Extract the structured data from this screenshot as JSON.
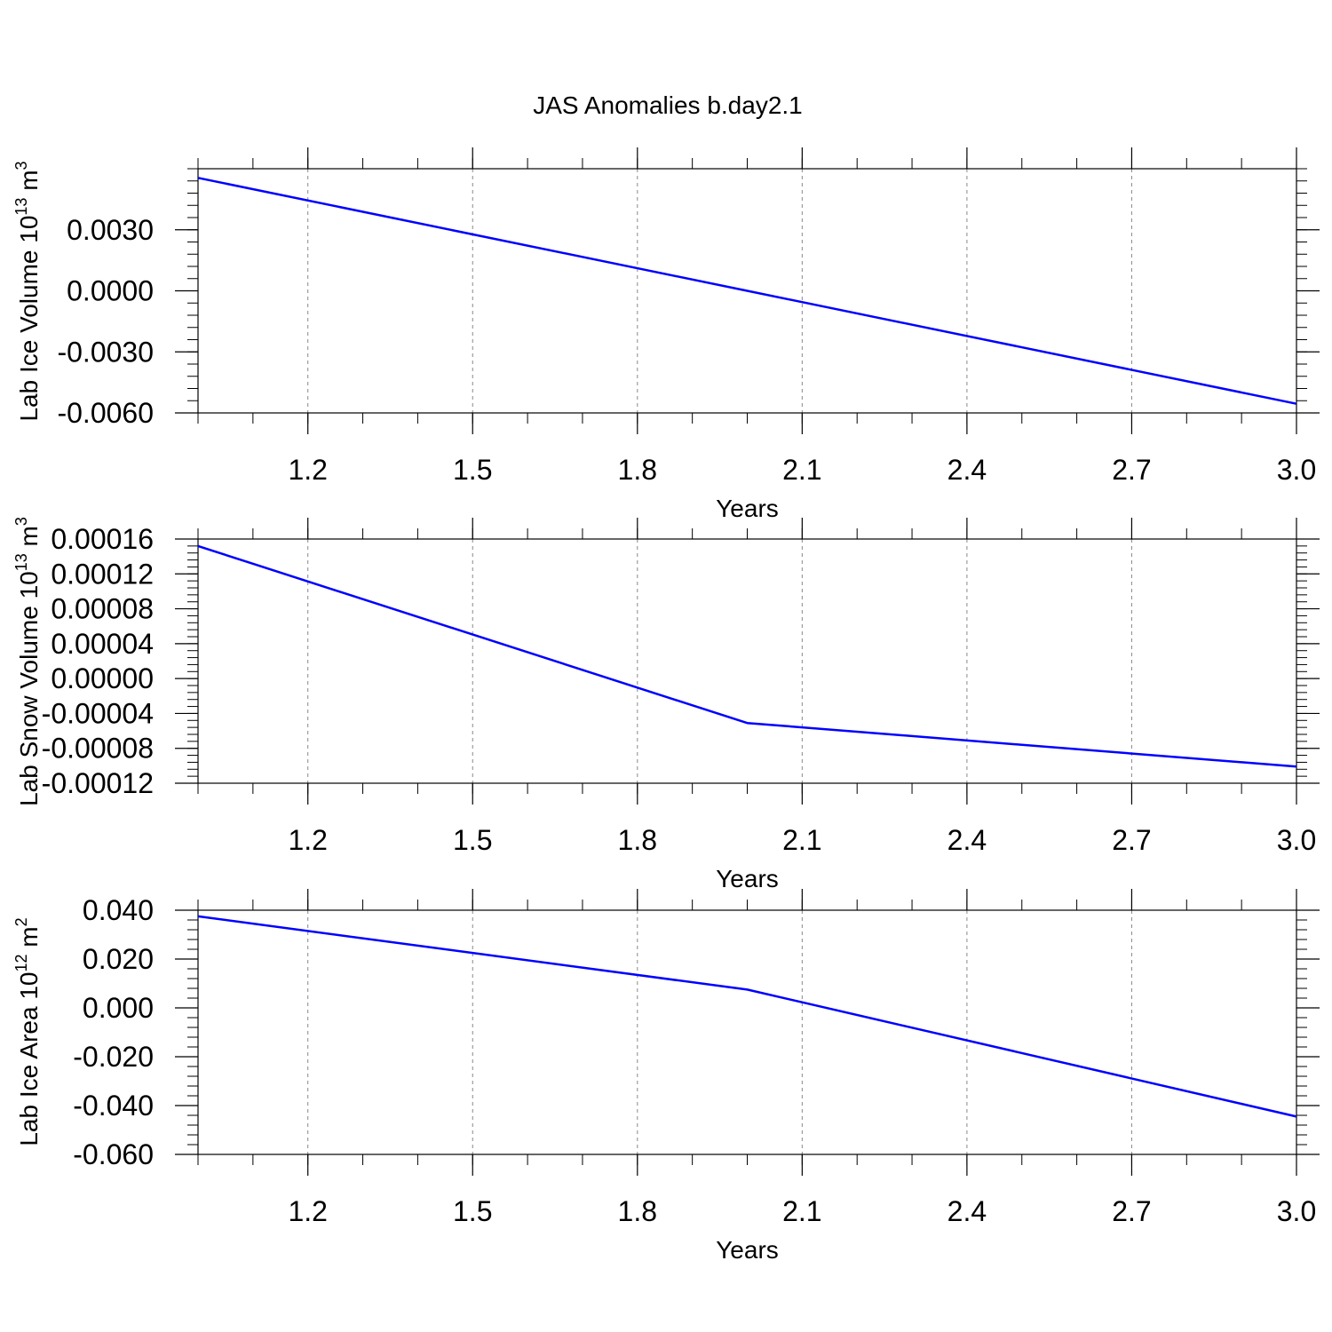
{
  "title": "JAS Anomalies b.day2.1",
  "chart_data": [
    {
      "type": "line",
      "ylabel": "Lab Ice Volume",
      "ylabel_unit": {
        "base": "10",
        "exp": "13",
        "unit": "m",
        "unit_exp": "3"
      },
      "xlabel": "Years",
      "xlim": [
        1.0,
        3.0
      ],
      "ylim": [
        -0.006,
        0.006
      ],
      "x_ticks": [
        1.2,
        1.5,
        1.8,
        2.1,
        2.4,
        2.7,
        3.0
      ],
      "x_tick_labels": [
        "1.2",
        "1.5",
        "1.8",
        "2.1",
        "2.4",
        "2.7",
        "3.0"
      ],
      "y_ticks": [
        -0.006,
        -0.003,
        0.0,
        0.003
      ],
      "y_tick_labels": [
        "-0.0060",
        "-0.0030",
        "0.0000",
        "0.0030"
      ],
      "grid": "vertical-dashed",
      "line_color": "#0000ff",
      "x": [
        1.0,
        2.0,
        3.0
      ],
      "y": [
        0.00555,
        0.0,
        -0.00555
      ]
    },
    {
      "type": "line",
      "ylabel": "Lab Snow Volume",
      "ylabel_unit": {
        "base": "10",
        "exp": "13",
        "unit": "m",
        "unit_exp": "3"
      },
      "xlabel": "Years",
      "xlim": [
        1.0,
        3.0
      ],
      "ylim": [
        -0.00012,
        0.00016
      ],
      "x_ticks": [
        1.2,
        1.5,
        1.8,
        2.1,
        2.4,
        2.7,
        3.0
      ],
      "x_tick_labels": [
        "1.2",
        "1.5",
        "1.8",
        "2.1",
        "2.4",
        "2.7",
        "3.0"
      ],
      "y_ticks": [
        -0.00012,
        -8e-05,
        -4e-05,
        0.0,
        4e-05,
        8e-05,
        0.00012,
        0.00016
      ],
      "y_tick_labels": [
        "-0.00012",
        "-0.00008",
        "-0.00004",
        "0.00000",
        "0.00004",
        "0.00008",
        "0.00012",
        "0.00016"
      ],
      "grid": "vertical-dashed",
      "line_color": "#0000ff",
      "x": [
        1.0,
        2.0,
        3.0
      ],
      "y": [
        0.000152,
        -5.1e-05,
        -0.000101
      ]
    },
    {
      "type": "line",
      "ylabel": "Lab Ice Area",
      "ylabel_unit": {
        "base": "10",
        "exp": "12",
        "unit": "m",
        "unit_exp": "2"
      },
      "xlabel": "Years",
      "xlim": [
        1.0,
        3.0
      ],
      "ylim": [
        -0.06,
        0.04
      ],
      "x_ticks": [
        1.2,
        1.5,
        1.8,
        2.1,
        2.4,
        2.7,
        3.0
      ],
      "x_tick_labels": [
        "1.2",
        "1.5",
        "1.8",
        "2.1",
        "2.4",
        "2.7",
        "3.0"
      ],
      "y_ticks": [
        -0.06,
        -0.04,
        -0.02,
        0.0,
        0.02,
        0.04
      ],
      "y_tick_labels": [
        "-0.060",
        "-0.040",
        "-0.020",
        "0.000",
        "0.020",
        "0.040"
      ],
      "grid": "vertical-dashed",
      "line_color": "#0000ff",
      "x": [
        1.0,
        2.0,
        3.0
      ],
      "y": [
        0.0375,
        0.0075,
        -0.0445
      ]
    }
  ]
}
